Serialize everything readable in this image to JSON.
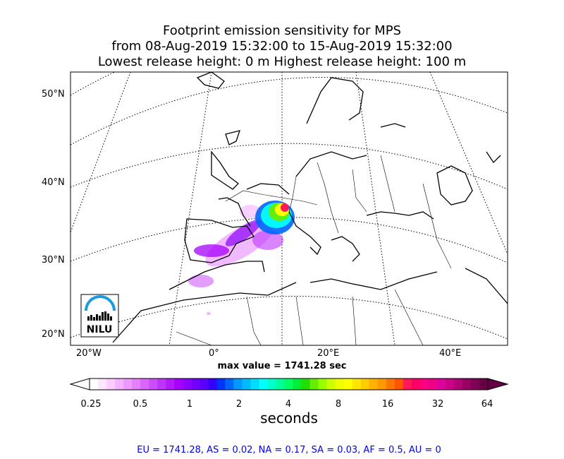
{
  "title": {
    "line1": "Footprint emission sensitivity for MPS",
    "line2": "from 08-Aug-2019 15:32:00 to 15-Aug-2019 15:32:00",
    "line3": "Lowest release height: 0 m      Highest release height: 100 m"
  },
  "axes": {
    "lat_labels": [
      "50°N",
      "40°N",
      "30°N",
      "20°N"
    ],
    "lon_labels": [
      "20°W",
      "0°",
      "20°E",
      "40°E"
    ]
  },
  "logo": {
    "text": "NILU"
  },
  "max_value_label": "max value = 1741.28 sec",
  "colorbar": {
    "ticks": [
      "0.25",
      "0.5",
      "1",
      "2",
      "4",
      "8",
      "16",
      "32",
      "64"
    ],
    "unit": "seconds",
    "colors": [
      "#ffffff",
      "#ffe6ff",
      "#ffccff",
      "#f5b3ff",
      "#ee99ff",
      "#e680ff",
      "#d966ff",
      "#cc4dff",
      "#bf33ff",
      "#b31aff",
      "#a600ff",
      "#8c00ff",
      "#7300ff",
      "#5900ff",
      "#3300ff",
      "#0033ff",
      "#0066ff",
      "#0099ff",
      "#00bbff",
      "#00ddff",
      "#00ffff",
      "#00ffcc",
      "#00ff99",
      "#00ff66",
      "#00ee33",
      "#22dd00",
      "#66ee00",
      "#99ff00",
      "#ccff00",
      "#eeff00",
      "#ffff00",
      "#ffe600",
      "#ffcc00",
      "#ffb300",
      "#ff9900",
      "#ff7700",
      "#ff5500",
      "#ff1a55",
      "#ff0066",
      "#ff0080",
      "#ee0088",
      "#dd0099",
      "#cc0088",
      "#b30077",
      "#990066",
      "#800055",
      "#660044"
    ]
  },
  "summary": "EU = 1741.28,  AS = 0.02,  NA = 0.17,  SA = 0.03,  AF = 0.5,  AU = 0"
}
